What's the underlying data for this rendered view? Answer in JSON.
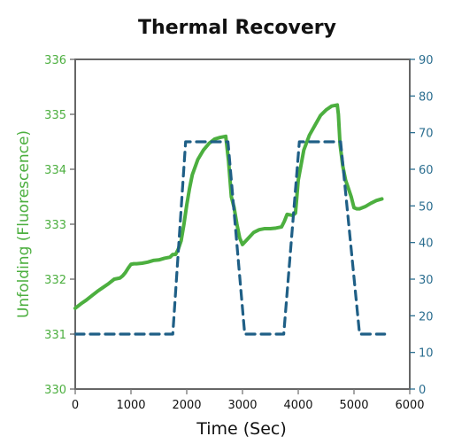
{
  "chart_data": {
    "type": "line",
    "title": "Thermal Recovery",
    "xlabel": "Time (Sec)",
    "ylabel_left": "Unfolding (Fluorescence)",
    "ylabel_right": "",
    "xlim": [
      0,
      6000
    ],
    "ylim_left": [
      330,
      336
    ],
    "ylim_right": [
      0,
      90
    ],
    "x_ticks": [
      "0",
      "1000",
      "2000",
      "3000",
      "4000",
      "5000",
      "6000"
    ],
    "y_left_ticks": [
      "330",
      "331",
      "332",
      "333",
      "334",
      "335",
      "336"
    ],
    "y_right_ticks": [
      "0",
      "10",
      "20",
      "30",
      "40",
      "50",
      "60",
      "70",
      "80",
      "90"
    ],
    "colors": {
      "fluorescence": "#4caf3f",
      "temperature": "#1f5f86",
      "axis_frame": "#666666",
      "left_axis_text": "#4caf3f",
      "right_axis_text": "#2a6d8f"
    },
    "series": [
      {
        "axis": "left",
        "style": "solid",
        "color": "#4caf3f",
        "x": [
          0,
          100,
          200,
          300,
          400,
          500,
          600,
          700,
          800,
          850,
          900,
          950,
          1000,
          1050,
          1100,
          1200,
          1300,
          1400,
          1500,
          1600,
          1700,
          1750,
          1800,
          1850,
          1900,
          1950,
          2000,
          2050,
          2100,
          2200,
          2300,
          2400,
          2500,
          2600,
          2700,
          2750,
          2800,
          2850,
          2900,
          2950,
          3000,
          3100,
          3200,
          3300,
          3400,
          3500,
          3600,
          3700,
          3750,
          3800,
          3850,
          3900,
          3950,
          4000,
          4100,
          4200,
          4300,
          4400,
          4500,
          4600,
          4700,
          4720,
          4750,
          4800,
          4850,
          4900,
          4950,
          5000,
          5050,
          5100,
          5200,
          5300,
          5400,
          5500
        ],
        "y": [
          331.47,
          331.55,
          331.62,
          331.7,
          331.78,
          331.85,
          331.92,
          332.0,
          332.02,
          332.06,
          332.12,
          332.2,
          332.27,
          332.28,
          332.28,
          332.29,
          332.31,
          332.34,
          332.35,
          332.38,
          332.4,
          332.45,
          332.45,
          332.55,
          332.7,
          333.0,
          333.35,
          333.65,
          333.9,
          334.18,
          334.35,
          334.47,
          334.55,
          334.58,
          334.6,
          334.15,
          333.5,
          333.3,
          333.0,
          332.75,
          332.63,
          332.74,
          332.85,
          332.9,
          332.92,
          332.92,
          332.93,
          332.95,
          333.05,
          333.18,
          333.17,
          333.16,
          333.2,
          333.8,
          334.35,
          334.62,
          334.8,
          334.98,
          335.08,
          335.15,
          335.17,
          335.0,
          334.45,
          334.05,
          333.8,
          333.65,
          333.5,
          333.3,
          333.28,
          333.28,
          333.32,
          333.38,
          333.43,
          333.46
        ]
      },
      {
        "axis": "right",
        "style": "dashed",
        "color": "#1f5f86",
        "x": [
          0,
          1750,
          1980,
          2740,
          3040,
          3740,
          4020,
          4760,
          5100,
          5550
        ],
        "y": [
          15,
          15,
          67.5,
          67.5,
          15,
          15,
          67.5,
          67.5,
          15,
          15
        ]
      }
    ]
  }
}
